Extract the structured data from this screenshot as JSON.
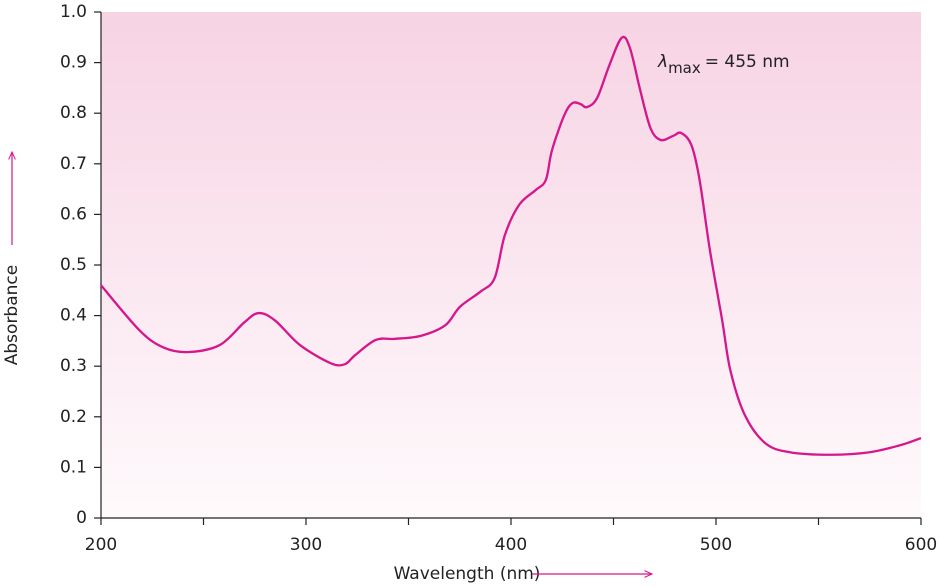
{
  "chart_data": {
    "type": "line",
    "xlabel": "Wavelength (nm)",
    "ylabel": "Absorbance",
    "annotation": {
      "symbol": "λ",
      "subscript": "max",
      "text": "= 455 nm"
    },
    "x": [
      200,
      219,
      231,
      243,
      258,
      270,
      277,
      285,
      297,
      312,
      319,
      324,
      334,
      343,
      356,
      368,
      375,
      385,
      392,
      397,
      404,
      412,
      417,
      420,
      426,
      430,
      434,
      437,
      442,
      448,
      454,
      458,
      463,
      468,
      473,
      479,
      483,
      488,
      492,
      497,
      503,
      507,
      514,
      524,
      536,
      556,
      575,
      590,
      600
    ],
    "values": [
      0.46,
      0.37,
      0.336,
      0.328,
      0.342,
      0.387,
      0.405,
      0.39,
      0.342,
      0.306,
      0.304,
      0.322,
      0.352,
      0.354,
      0.36,
      0.381,
      0.417,
      0.447,
      0.474,
      0.559,
      0.619,
      0.648,
      0.668,
      0.727,
      0.796,
      0.82,
      0.818,
      0.812,
      0.83,
      0.895,
      0.949,
      0.929,
      0.846,
      0.771,
      0.747,
      0.755,
      0.761,
      0.737,
      0.668,
      0.53,
      0.391,
      0.292,
      0.204,
      0.148,
      0.13,
      0.125,
      0.13,
      0.144,
      0.158
    ],
    "color": "#d6168b",
    "xlim": [
      200,
      600
    ],
    "xticks": [
      200,
      300,
      400,
      500,
      600
    ],
    "xminorticks": [
      250,
      350,
      450,
      550
    ],
    "ylim": [
      0,
      1
    ],
    "yticks": [
      0,
      0.1,
      0.2,
      0.3,
      0.4,
      0.5,
      0.6,
      0.7,
      0.8,
      0.9,
      {
        "value": 1,
        "label": "1.0"
      }
    ],
    "grid": false
  }
}
